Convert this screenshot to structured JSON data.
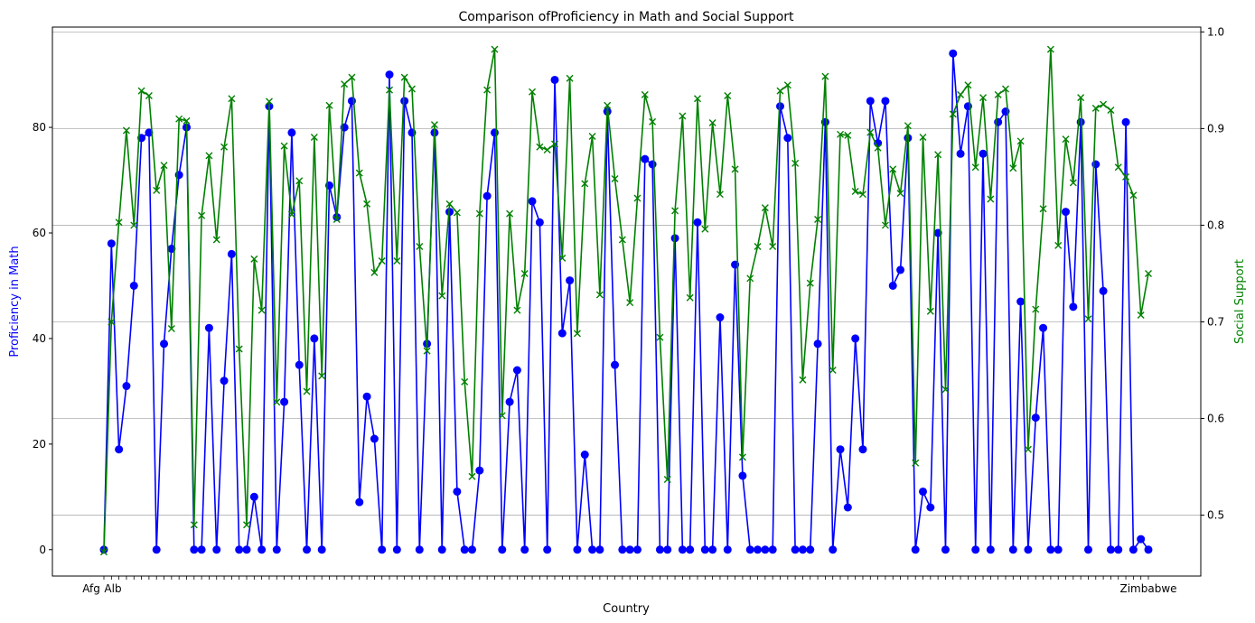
{
  "chart_data": {
    "type": "line",
    "title": "Comparison ofProficiency in Math and Social Support",
    "xlabel": "Country",
    "ylabel_left": "Proficiency in Math",
    "ylabel_right": "Social Support",
    "colors": {
      "left": "#0000ff",
      "right": "#008000"
    },
    "grid": "horizontal lines at right-axis ticks",
    "x_tick_labels_visible": [
      "Afg",
      "Alb",
      "Zimbabwe"
    ],
    "left_axis": {
      "ylim": [
        -5,
        99
      ],
      "ticks": [
        0,
        20,
        40,
        60,
        80
      ]
    },
    "right_axis": {
      "ylim": [
        0.437,
        1.005
      ],
      "ticks": [
        0.5,
        0.6,
        0.7,
        0.8,
        0.9,
        1.0
      ]
    },
    "series": [
      {
        "axis": "left",
        "marker": "circle",
        "values": [
          0,
          58,
          19,
          31,
          50,
          78,
          79,
          0,
          39,
          57,
          71,
          80,
          0,
          0,
          42,
          0,
          32,
          56,
          0,
          0,
          10,
          0,
          84,
          0,
          28,
          79,
          35,
          0,
          40,
          0,
          69,
          63,
          80,
          85,
          9,
          29,
          21,
          0,
          90,
          0,
          85,
          79,
          0,
          39,
          79,
          0,
          64,
          11,
          0,
          0,
          15,
          67,
          79,
          0,
          28,
          34,
          0,
          66,
          62,
          0,
          89,
          41,
          51,
          0,
          18,
          0,
          0,
          83,
          35,
          0,
          0,
          0,
          74,
          73,
          0,
          0,
          59,
          0,
          0,
          62,
          0,
          0,
          44,
          0,
          54,
          14,
          0,
          0,
          0,
          0,
          84,
          78,
          0,
          0,
          0,
          39,
          81,
          0,
          19,
          8,
          40,
          19,
          85,
          77,
          85,
          50,
          53,
          78,
          0,
          11,
          8,
          60,
          0,
          94,
          75,
          84,
          0,
          75,
          0,
          81,
          83,
          0,
          47,
          0,
          25,
          42,
          0,
          0,
          64,
          46,
          81,
          0,
          73,
          49,
          0,
          0,
          81,
          0,
          2,
          0
        ]
      },
      {
        "axis": "right",
        "marker": "x",
        "values": [
          0.462,
          0.7,
          0.803,
          0.898,
          0.8,
          0.939,
          0.934,
          0.836,
          0.862,
          0.693,
          0.91,
          0.908,
          0.49,
          0.81,
          0.872,
          0.785,
          0.881,
          0.931,
          0.672,
          0.49,
          0.765,
          0.712,
          0.928,
          0.617,
          0.882,
          0.811,
          0.846,
          0.628,
          0.891,
          0.644,
          0.924,
          0.806,
          0.946,
          0.953,
          0.854,
          0.822,
          0.751,
          0.763,
          0.94,
          0.763,
          0.953,
          0.941,
          0.778,
          0.67,
          0.904,
          0.727,
          0.822,
          0.813,
          0.638,
          0.54,
          0.812,
          0.94,
          0.982,
          0.603,
          0.812,
          0.712,
          0.75,
          0.938,
          0.881,
          0.878,
          0.884,
          0.766,
          0.952,
          0.688,
          0.843,
          0.892,
          0.728,
          0.924,
          0.848,
          0.785,
          0.72,
          0.828,
          0.935,
          0.907,
          0.684,
          0.537,
          0.815,
          0.913,
          0.725,
          0.931,
          0.796,
          0.906,
          0.832,
          0.934,
          0.858,
          0.56,
          0.745,
          0.778,
          0.818,
          0.778,
          0.939,
          0.945,
          0.864,
          0.64,
          0.74,
          0.806,
          0.954,
          0.65,
          0.894,
          0.893,
          0.835,
          0.832,
          0.896,
          0.88,
          0.8,
          0.858,
          0.833,
          0.903,
          0.554,
          0.891,
          0.711,
          0.873,
          0.63,
          0.915,
          0.935,
          0.945,
          0.86,
          0.932,
          0.827,
          0.935,
          0.941,
          0.859,
          0.887,
          0.568,
          0.713,
          0.817,
          0.982,
          0.779,
          0.889,
          0.844,
          0.932,
          0.703,
          0.921,
          0.925,
          0.919,
          0.86,
          0.85,
          0.831,
          0.707,
          0.75
        ]
      }
    ]
  }
}
